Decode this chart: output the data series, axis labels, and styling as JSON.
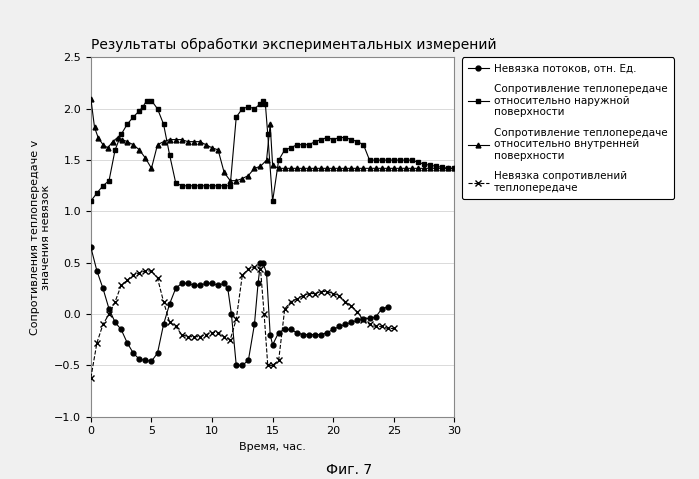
{
  "title": "Результаты обработки экспериментальных измерений",
  "xlabel": "Время, час.",
  "ylabel": "Сопротивления теплопередаче v\nзначения невязок",
  "fig_caption": "Фиг. 7",
  "xlim": [
    0,
    30
  ],
  "ylim": [
    -1.0,
    2.5
  ],
  "yticks": [
    -1.0,
    -0.5,
    0.0,
    0.5,
    1.0,
    1.5,
    2.0,
    2.5
  ],
  "xticks": [
    0,
    5,
    10,
    15,
    20,
    25,
    30
  ],
  "legend_entries": [
    "Невязка потоков, отн. Ед.",
    "Сопротивление теплопередаче\nотносительно наружной\nповерхности",
    "Сопротивление теплопередаче\nотносительно внутренней\nповерхности",
    "Невязка сопротивлений\nтеплопередаче"
  ],
  "series1_x": [
    0.0,
    0.5,
    1.0,
    1.5,
    2.0,
    2.5,
    3.0,
    3.5,
    4.0,
    4.5,
    5.0,
    5.5,
    6.0,
    6.5,
    7.0,
    7.5,
    8.0,
    8.5,
    9.0,
    9.5,
    10.0,
    10.5,
    11.0,
    11.3,
    11.6,
    12.0,
    12.5,
    13.0,
    13.5,
    13.8,
    14.0,
    14.2,
    14.5,
    14.8,
    15.0,
    15.5,
    16.0,
    16.5,
    17.0,
    17.5,
    18.0,
    18.5,
    19.0,
    19.5,
    20.0,
    20.5,
    21.0,
    21.5,
    22.0,
    22.5,
    23.0,
    23.5,
    24.0,
    24.5
  ],
  "series1_y": [
    0.65,
    0.42,
    0.25,
    0.05,
    -0.08,
    -0.15,
    -0.28,
    -0.38,
    -0.44,
    -0.45,
    -0.46,
    -0.38,
    -0.1,
    0.1,
    0.25,
    0.3,
    0.3,
    0.28,
    0.28,
    0.3,
    0.3,
    0.28,
    0.3,
    0.25,
    0.0,
    -0.5,
    -0.5,
    -0.45,
    -0.1,
    0.3,
    0.5,
    0.5,
    0.4,
    -0.2,
    -0.3,
    -0.18,
    -0.15,
    -0.15,
    -0.18,
    -0.2,
    -0.2,
    -0.2,
    -0.2,
    -0.18,
    -0.15,
    -0.12,
    -0.1,
    -0.08,
    -0.06,
    -0.05,
    -0.04,
    -0.03,
    0.05,
    0.07
  ],
  "series2_x": [
    0.0,
    0.5,
    1.0,
    1.5,
    2.0,
    2.5,
    3.0,
    3.5,
    4.0,
    4.3,
    4.6,
    5.0,
    5.5,
    6.0,
    6.5,
    7.0,
    7.5,
    8.0,
    8.5,
    9.0,
    9.5,
    10.0,
    10.5,
    11.0,
    11.5,
    12.0,
    12.5,
    13.0,
    13.5,
    14.0,
    14.2,
    14.4,
    14.6,
    15.0,
    15.5,
    16.0,
    16.5,
    17.0,
    17.5,
    18.0,
    18.5,
    19.0,
    19.5,
    20.0,
    20.5,
    21.0,
    21.5,
    22.0,
    22.5,
    23.0,
    23.5,
    24.0,
    24.5,
    25.0,
    25.5,
    26.0,
    26.5,
    27.0,
    27.5,
    28.0,
    28.5,
    29.0,
    29.5,
    30.0
  ],
  "series2_y": [
    1.1,
    1.18,
    1.25,
    1.3,
    1.6,
    1.75,
    1.85,
    1.92,
    1.98,
    2.02,
    2.08,
    2.08,
    2.0,
    1.85,
    1.55,
    1.28,
    1.25,
    1.25,
    1.25,
    1.25,
    1.25,
    1.25,
    1.25,
    1.25,
    1.25,
    1.92,
    2.0,
    2.02,
    2.0,
    2.05,
    2.08,
    2.05,
    1.75,
    1.1,
    1.5,
    1.6,
    1.62,
    1.65,
    1.65,
    1.65,
    1.68,
    1.7,
    1.72,
    1.7,
    1.72,
    1.72,
    1.7,
    1.68,
    1.65,
    1.5,
    1.5,
    1.5,
    1.5,
    1.5,
    1.5,
    1.5,
    1.5,
    1.48,
    1.46,
    1.45,
    1.44,
    1.43,
    1.42,
    1.42
  ],
  "series3_x": [
    0.0,
    0.3,
    0.6,
    1.0,
    1.4,
    1.8,
    2.2,
    2.6,
    3.0,
    3.5,
    4.0,
    4.5,
    5.0,
    5.5,
    6.0,
    6.5,
    7.0,
    7.5,
    8.0,
    8.5,
    9.0,
    9.5,
    10.0,
    10.5,
    11.0,
    11.5,
    12.0,
    12.5,
    13.0,
    13.5,
    14.0,
    14.5,
    14.8,
    15.0,
    15.5,
    16.0,
    16.5,
    17.0,
    17.5,
    18.0,
    18.5,
    19.0,
    19.5,
    20.0,
    20.5,
    21.0,
    21.5,
    22.0,
    22.5,
    23.0,
    23.5,
    24.0,
    24.5,
    25.0,
    25.5,
    26.0,
    26.5,
    27.0,
    27.5,
    28.0,
    28.5,
    29.0,
    29.5,
    30.0
  ],
  "series3_y": [
    2.1,
    1.82,
    1.72,
    1.65,
    1.62,
    1.68,
    1.72,
    1.7,
    1.68,
    1.65,
    1.6,
    1.52,
    1.42,
    1.65,
    1.68,
    1.7,
    1.7,
    1.7,
    1.68,
    1.68,
    1.68,
    1.65,
    1.62,
    1.6,
    1.38,
    1.3,
    1.3,
    1.32,
    1.35,
    1.42,
    1.44,
    1.5,
    1.85,
    1.45,
    1.42,
    1.42,
    1.42,
    1.42,
    1.42,
    1.42,
    1.42,
    1.42,
    1.42,
    1.42,
    1.42,
    1.42,
    1.42,
    1.42,
    1.42,
    1.42,
    1.42,
    1.42,
    1.42,
    1.42,
    1.42,
    1.42,
    1.42,
    1.42,
    1.42,
    1.42,
    1.42,
    1.42,
    1.42,
    1.42
  ],
  "series4_x": [
    0.0,
    0.5,
    1.0,
    1.5,
    2.0,
    2.5,
    3.0,
    3.5,
    4.0,
    4.5,
    5.0,
    5.5,
    6.0,
    6.5,
    7.0,
    7.5,
    8.0,
    8.5,
    9.0,
    9.5,
    10.0,
    10.5,
    11.0,
    11.5,
    12.0,
    12.5,
    13.0,
    13.5,
    14.0,
    14.3,
    14.6,
    15.0,
    15.5,
    16.0,
    16.5,
    17.0,
    17.5,
    18.0,
    18.5,
    19.0,
    19.5,
    20.0,
    20.5,
    21.0,
    21.5,
    22.0,
    22.5,
    23.0,
    23.5,
    24.0,
    24.5,
    25.0
  ],
  "series4_y": [
    -0.62,
    -0.28,
    -0.1,
    0.0,
    0.12,
    0.28,
    0.33,
    0.38,
    0.4,
    0.42,
    0.42,
    0.35,
    0.12,
    -0.08,
    -0.12,
    -0.2,
    -0.22,
    -0.22,
    -0.22,
    -0.2,
    -0.18,
    -0.18,
    -0.22,
    -0.25,
    -0.05,
    0.38,
    0.44,
    0.46,
    0.44,
    0.0,
    -0.5,
    -0.5,
    -0.45,
    0.05,
    0.12,
    0.15,
    0.18,
    0.2,
    0.2,
    0.22,
    0.22,
    0.2,
    0.18,
    0.12,
    0.08,
    0.02,
    -0.06,
    -0.1,
    -0.12,
    -0.12,
    -0.14,
    -0.14
  ],
  "background_color": "#f0f0f0",
  "plot_bg_color": "#ffffff",
  "line_color": "#000000",
  "grid_color": "#cccccc",
  "title_fontsize": 10,
  "label_fontsize": 8,
  "tick_fontsize": 8,
  "legend_fontsize": 7.5
}
